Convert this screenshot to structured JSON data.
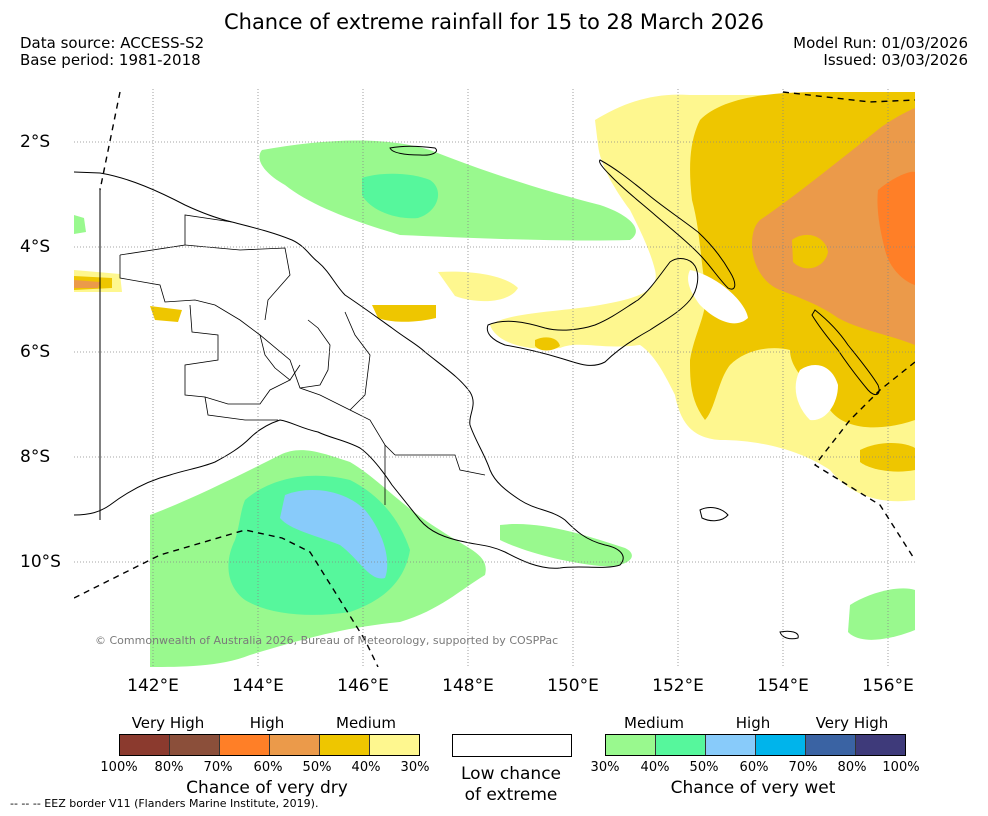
{
  "header": {
    "title": "Chance of extreme rainfall for 15 to 28 March 2026",
    "data_source": "Data source: ACCESS-S2",
    "base_period": "Base period: 1981-2018",
    "model_run": "Model Run: 01/03/2026",
    "issued": "Issued: 03/03/2026"
  },
  "map": {
    "region": "Papua New Guinea",
    "lat_ticks": [
      "2°S",
      "4°S",
      "6°S",
      "8°S",
      "10°S"
    ],
    "lon_ticks": [
      "142°E",
      "144°E",
      "146°E",
      "148°E",
      "150°E",
      "152°E",
      "154°E",
      "156°E"
    ],
    "copyright": "© Commonwealth of Australia 2026, Bureau of Meteorology, supported by COSPPac",
    "eez_note": "--  --  -- EEZ border V11 (Flanders Marine Institute, 2019)."
  },
  "legend": {
    "dry": {
      "levels": [
        "Very High",
        "High",
        "Medium"
      ],
      "colors": [
        "#8b3a2e",
        "#8b4f3a",
        "#ff7f27",
        "#eb9a4a",
        "#eec600",
        "#fef78f"
      ],
      "percents": [
        "100%",
        "80%",
        "70%",
        "60%",
        "50%",
        "40%",
        "30%"
      ],
      "caption": "Chance of very dry"
    },
    "low": {
      "caption_line1": "Low chance",
      "caption_line2": "of extreme"
    },
    "wet": {
      "levels": [
        "Medium",
        "High",
        "Very High"
      ],
      "colors": [
        "#99f98e",
        "#56f79c",
        "#88cbfa",
        "#00b4eb",
        "#3a63a3",
        "#3e3a7a"
      ],
      "percents": [
        "30%",
        "40%",
        "50%",
        "60%",
        "70%",
        "80%",
        "100%"
      ],
      "caption": "Chance of very wet"
    }
  }
}
